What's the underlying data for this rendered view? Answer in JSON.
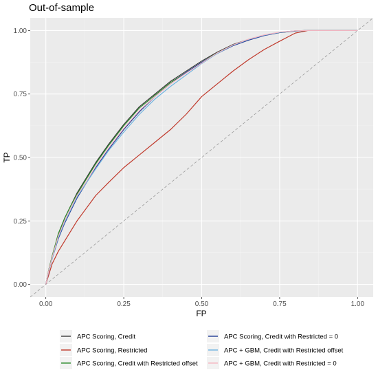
{
  "chart_data": {
    "type": "line",
    "title": "Out-of-sample",
    "xlabel": "FP",
    "ylabel": "TP",
    "xlim": [
      -0.05,
      1.05
    ],
    "ylim": [
      -0.05,
      1.05
    ],
    "x_ticks": [
      0.0,
      0.25,
      0.5,
      0.75,
      1.0
    ],
    "x_tick_labels": [
      "0.00",
      "0.25",
      "0.50",
      "0.75",
      "1.00"
    ],
    "y_ticks": [
      0.0,
      0.25,
      0.5,
      0.75,
      1.0
    ],
    "y_tick_labels": [
      "0.00",
      "0.25",
      "0.50",
      "0.75",
      "1.00"
    ],
    "grid": true,
    "legend_position": "bottom",
    "reference_line": {
      "x": [
        0,
        1
      ],
      "y": [
        0,
        1
      ],
      "style": "dashed",
      "color": "#999999"
    },
    "series": [
      {
        "name": "APC Scoring, Credit",
        "color": "#3a3a3a",
        "x": [
          0,
          0.01,
          0.02,
          0.04,
          0.06,
          0.08,
          0.1,
          0.13,
          0.16,
          0.2,
          0.25,
          0.3,
          0.35,
          0.4,
          0.45,
          0.5,
          0.55,
          0.6,
          0.65,
          0.7,
          0.75,
          0.8,
          0.83,
          1.0
        ],
        "y": [
          0,
          0.06,
          0.11,
          0.19,
          0.26,
          0.31,
          0.36,
          0.42,
          0.48,
          0.55,
          0.63,
          0.7,
          0.75,
          0.8,
          0.84,
          0.88,
          0.915,
          0.945,
          0.965,
          0.982,
          0.993,
          0.999,
          1.0,
          1.0
        ]
      },
      {
        "name": "APC Scoring, Restricted",
        "color": "#c0392b",
        "x": [
          0,
          0.01,
          0.02,
          0.04,
          0.06,
          0.08,
          0.1,
          0.13,
          0.16,
          0.2,
          0.25,
          0.3,
          0.35,
          0.4,
          0.45,
          0.5,
          0.55,
          0.6,
          0.65,
          0.7,
          0.75,
          0.8,
          0.84,
          1.0
        ],
        "y": [
          0,
          0.04,
          0.08,
          0.13,
          0.17,
          0.21,
          0.25,
          0.3,
          0.35,
          0.4,
          0.46,
          0.51,
          0.56,
          0.61,
          0.67,
          0.74,
          0.79,
          0.84,
          0.885,
          0.925,
          0.958,
          0.99,
          1.0,
          1.0
        ]
      },
      {
        "name": "APC Scoring, Credit with Restricted offset",
        "color": "#2e8b2e",
        "x": [
          0,
          0.01,
          0.02,
          0.04,
          0.06,
          0.08,
          0.1,
          0.13,
          0.16,
          0.2,
          0.25,
          0.3,
          0.35,
          0.4,
          0.45,
          0.5,
          0.55,
          0.6,
          0.65,
          0.7,
          0.75,
          0.8,
          0.83,
          1.0
        ],
        "y": [
          0,
          0.06,
          0.11,
          0.2,
          0.26,
          0.31,
          0.355,
          0.415,
          0.475,
          0.545,
          0.625,
          0.695,
          0.745,
          0.795,
          0.835,
          0.875,
          0.912,
          0.943,
          0.964,
          0.981,
          0.992,
          0.998,
          1.0,
          1.0
        ]
      },
      {
        "name": "APC Scoring, Credit with Restricted = 0",
        "color": "#1f3a93",
        "x": [
          0,
          0.01,
          0.02,
          0.04,
          0.06,
          0.08,
          0.1,
          0.13,
          0.16,
          0.2,
          0.25,
          0.3,
          0.35,
          0.4,
          0.45,
          0.5,
          0.55,
          0.6,
          0.65,
          0.7,
          0.75,
          0.8,
          0.83,
          1.0
        ],
        "y": [
          0,
          0.055,
          0.1,
          0.18,
          0.24,
          0.29,
          0.34,
          0.4,
          0.46,
          0.53,
          0.61,
          0.68,
          0.74,
          0.79,
          0.835,
          0.875,
          0.91,
          0.94,
          0.962,
          0.98,
          0.992,
          0.998,
          1.0,
          1.0
        ]
      },
      {
        "name": "APC + GBM, Credit with Restricted offset",
        "color": "#6fb3e0",
        "x": [
          0,
          0.01,
          0.02,
          0.04,
          0.06,
          0.08,
          0.1,
          0.13,
          0.16,
          0.2,
          0.25,
          0.3,
          0.35,
          0.4,
          0.45,
          0.5,
          0.55,
          0.6,
          0.65,
          0.7,
          0.75,
          0.8,
          0.83,
          1.0
        ],
        "y": [
          0,
          0.055,
          0.1,
          0.185,
          0.245,
          0.295,
          0.345,
          0.4,
          0.455,
          0.525,
          0.6,
          0.67,
          0.73,
          0.78,
          0.825,
          0.87,
          0.91,
          0.942,
          0.965,
          0.982,
          0.993,
          0.999,
          1.0,
          1.0
        ]
      },
      {
        "name": "APC + GBM, Credit with Restricted = 0",
        "color": "#f4b6c2",
        "x": [
          0,
          0.01,
          0.02,
          0.04,
          0.06,
          0.08,
          0.1,
          0.13,
          0.16,
          0.2,
          0.25,
          0.3,
          0.35,
          0.4,
          0.45,
          0.5,
          0.55,
          0.6,
          0.65,
          0.7,
          0.75,
          0.8,
          0.83,
          1.0
        ],
        "y": [
          0,
          0.058,
          0.105,
          0.19,
          0.25,
          0.3,
          0.35,
          0.405,
          0.465,
          0.535,
          0.615,
          0.685,
          0.74,
          0.79,
          0.832,
          0.872,
          0.912,
          0.943,
          0.966,
          0.983,
          0.994,
          0.999,
          1.0,
          1.0
        ]
      }
    ]
  }
}
